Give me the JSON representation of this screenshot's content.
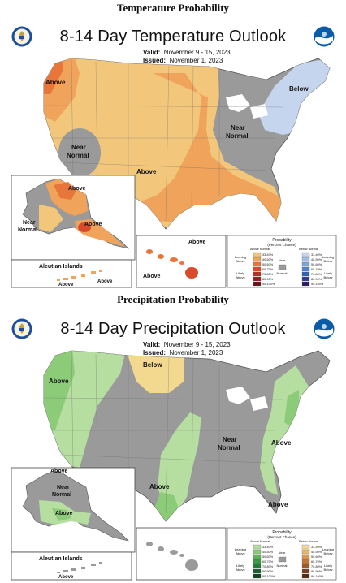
{
  "top": {
    "section_title": "Temperature Probability",
    "map_title": "8-14 Day Temperature Outlook",
    "valid_label": "Valid:",
    "valid_value": "November 9 - 15, 2023",
    "issued_label": "Issued:",
    "issued_value": "November 1, 2023",
    "region_labels": {
      "above_nw": "Above",
      "near_west_1": "Near",
      "near_west_2": "Normal",
      "above_center": "Above",
      "near_east_1": "Near",
      "near_east_2": "Normal",
      "below_ne": "Below",
      "ak_above": "Above",
      "ak_near_1": "Near",
      "ak_near_2": "Normal",
      "ak_above_2": "Above",
      "hi_above_1": "Above",
      "hi_above_2": "Above",
      "aleutian": "Aleutian Islands",
      "al_above_1": "Above",
      "al_above_2": "Above"
    },
    "legend": {
      "title_1": "Probability",
      "title_2": "(Percent Chance)",
      "above_normal": "Above Normal",
      "below_normal": "Below Normal",
      "leaning_1": "Leaning",
      "leaning_above": "Above",
      "likely_1": "Likely",
      "likely_above": "Above",
      "near_1": "Near",
      "near_2": "Normal",
      "leaning_below_1": "Leaning",
      "leaning_below_2": "Below",
      "likely_below_1": "Likely",
      "likely_below_2": "Below",
      "ranges": [
        "33-40%",
        "40-50%",
        "50-60%",
        "60-70%",
        "70-80%",
        "80-90%",
        "90-100%"
      ],
      "above_colors": [
        "#f2c77c",
        "#f0a35a",
        "#e8753a",
        "#d94a2b",
        "#bf2a22",
        "#9b1a1a",
        "#6b0f12"
      ],
      "below_colors": [
        "#c5d5ee",
        "#a3bde6",
        "#7aa6dc",
        "#4f86cc",
        "#2d63b3",
        "#273e96",
        "#2a1a66"
      ],
      "near_color": "#9a9a9a"
    }
  },
  "bottom": {
    "section_title": "Precipitation Probability",
    "map_title": "8-14 Day Precipitation Outlook",
    "valid_label": "Valid:",
    "valid_value": "November 9 - 15, 2023",
    "issued_label": "Issued:",
    "issued_value": "November 1, 2023",
    "region_labels": {
      "above_nw": "Above",
      "below_n": "Below",
      "near_1": "Near",
      "near_2": "Normal",
      "above_east": "Above",
      "above_south": "Above",
      "above_fl": "Above",
      "ak_above": "Above",
      "ak_near_1": "Near",
      "ak_near_2": "Normal",
      "ak_above_2": "Above",
      "aleutian": "Aleutian Islands",
      "al_above": "Above"
    },
    "legend": {
      "title_1": "Probability",
      "title_2": "(Percent Chance)",
      "above_normal": "Above Normal",
      "below_normal": "Below Normal",
      "leaning_1": "Leaning",
      "leaning_above": "Above",
      "likely_1": "Likely",
      "likely_above": "Above",
      "near_1": "Near",
      "near_2": "Normal",
      "leaning_below_1": "Leaning",
      "leaning_below_2": "Below",
      "likely_below_1": "Likely",
      "likely_below_2": "Below",
      "ranges": [
        "33-40%",
        "40-50%",
        "50-60%",
        "60-70%",
        "70-80%",
        "80-90%",
        "90-100%"
      ],
      "above_colors": [
        "#b5dea0",
        "#8ccc78",
        "#5fb35a",
        "#3c9a45",
        "#237d37",
        "#17612a",
        "#0c441d"
      ],
      "below_colors": [
        "#f3d990",
        "#e9b86a",
        "#d99850",
        "#c07838",
        "#9c5a2a",
        "#7a3e1e",
        "#552812"
      ],
      "near_color": "#9a9a9a"
    }
  }
}
